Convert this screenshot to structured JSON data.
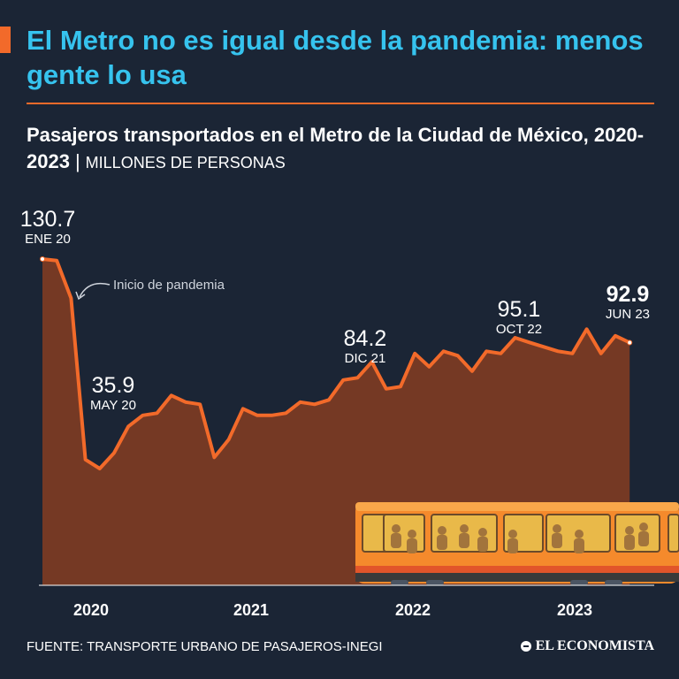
{
  "header": {
    "title": "El Metro no es igual desde la pandemia: menos gente lo usa",
    "subtitle": "Pasajeros transportados en el Metro de la Ciudad de México, 2020-2023",
    "separator": "|",
    "unit": "MILLONES DE PERSONAS"
  },
  "footer": {
    "source": "FUENTE: TRANSPORTE URBANO DE PASAJEROS-INEGI",
    "logo": "EL ECONOMISTA"
  },
  "colors": {
    "background": "#1b2535",
    "title": "#36c3ee",
    "accent": "#f26a2a",
    "area": "#7a3a24",
    "line": "#f26a2a"
  },
  "chart_data": {
    "type": "area",
    "x_start": "2020-01",
    "x_end": "2023-06",
    "xlabel": "",
    "ylabel": "",
    "x_tick_labels": [
      "2020",
      "2021",
      "2022",
      "2023"
    ],
    "grid": false,
    "series": [
      {
        "values": [
          130.7,
          130.0,
          113.0,
          40.0,
          35.9,
          43.0,
          55.0,
          60.0,
          61.0,
          69.0,
          66.0,
          65.0,
          41.0,
          49.0,
          63.0,
          60.0,
          60.0,
          61.0,
          66.0,
          65.0,
          67.0,
          76.0,
          77.0,
          84.2,
          72.0,
          73.0,
          88.0,
          82.0,
          89.0,
          87.0,
          80.0,
          89.0,
          88.0,
          95.1,
          93.0,
          91.0,
          89.0,
          88.0,
          99.0,
          88.0,
          96.0,
          92.9
        ]
      }
    ],
    "annotations": [
      {
        "value": "130.7",
        "date": "ENE 20"
      },
      {
        "value": "35.9",
        "date": "MAY 20"
      },
      {
        "value": "84.2",
        "date": "DIC 21"
      },
      {
        "value": "95.1",
        "date": "OCT 22"
      },
      {
        "value": "92.9",
        "date": "JUN 23"
      }
    ],
    "callout": "Inicio de pandemia"
  }
}
